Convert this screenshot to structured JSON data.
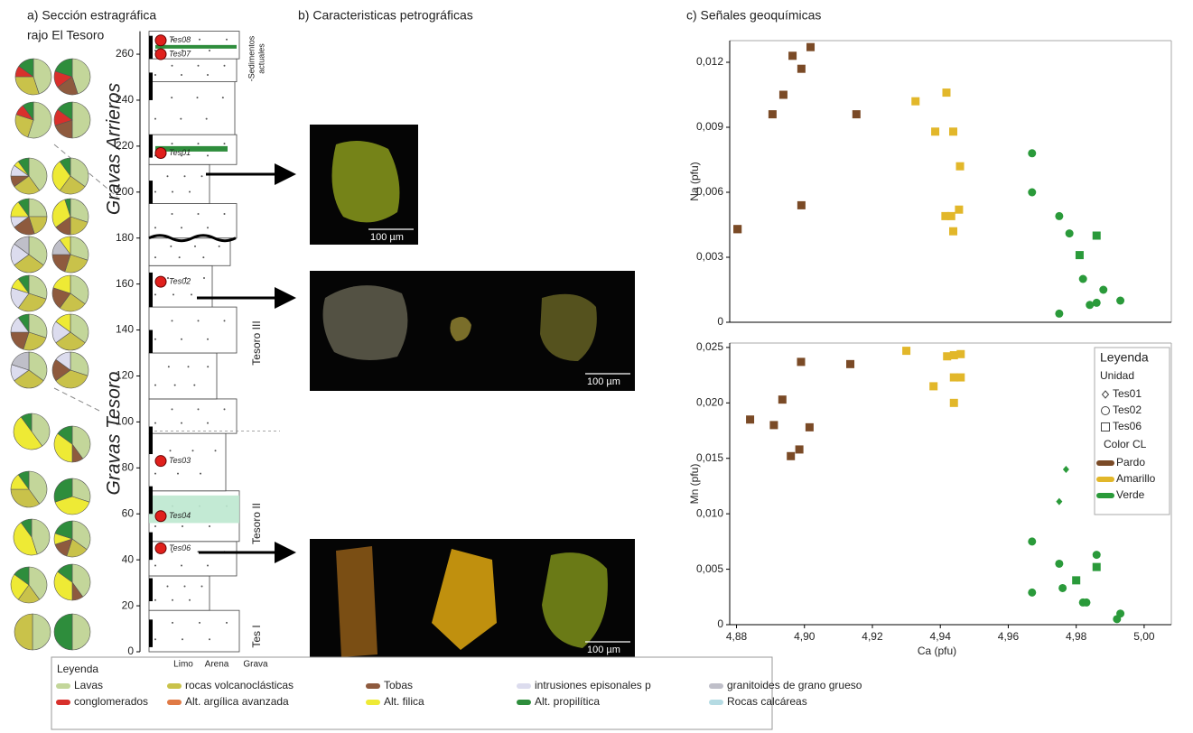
{
  "panel_a": {
    "title_line1": "a) Sección estragráfica",
    "title_line2": "rajo El Tesoro",
    "depth_ticks": [
      0,
      20,
      40,
      60,
      80,
      100,
      120,
      140,
      160,
      180,
      200,
      220,
      240,
      260
    ],
    "units": [
      "Gravas Arrieros",
      "Gravas Tesoro"
    ],
    "subunits": [
      "Tesoro III",
      "Tesoro II",
      "Tes I"
    ],
    "recent_line1": "-Sedimentos",
    "recent_line2": "actuales",
    "grain_sizes": [
      "Limo",
      "Arena",
      "Grava"
    ],
    "samples": [
      {
        "name": "Tes08",
        "height": 266
      },
      {
        "name": "Tes07",
        "height": 260
      },
      {
        "name": "Tes01",
        "height": 217
      },
      {
        "name": "Tes02",
        "height": 161
      },
      {
        "name": "Tes03",
        "height": 83
      },
      {
        "name": "Tes04",
        "height": 59
      },
      {
        "name": "Tes06",
        "height": 45
      }
    ],
    "pies": [
      {
        "values": [
          45,
          30,
          0,
          0,
          0,
          10,
          0,
          0,
          15,
          0
        ]
      },
      {
        "values": [
          45,
          0,
          20,
          0,
          0,
          15,
          0,
          0,
          20,
          0
        ]
      },
      {
        "values": [
          55,
          25,
          0,
          0,
          0,
          10,
          0,
          0,
          10,
          0
        ]
      },
      {
        "values": [
          50,
          0,
          20,
          0,
          0,
          15,
          0,
          0,
          15,
          0
        ]
      },
      {
        "values": [
          40,
          25,
          10,
          10,
          0,
          0,
          0,
          5,
          10,
          0
        ]
      },
      {
        "values": [
          35,
          25,
          0,
          0,
          0,
          0,
          0,
          30,
          10,
          0
        ]
      },
      {
        "values": [
          25,
          20,
          20,
          10,
          0,
          0,
          0,
          15,
          10,
          0
        ]
      },
      {
        "values": [
          30,
          20,
          15,
          0,
          0,
          0,
          0,
          30,
          5,
          0
        ]
      },
      {
        "values": [
          35,
          30,
          0,
          20,
          15,
          0,
          0,
          0,
          0,
          0
        ]
      },
      {
        "values": [
          30,
          25,
          20,
          0,
          15,
          0,
          0,
          10,
          0,
          0
        ]
      },
      {
        "values": [
          30,
          30,
          0,
          20,
          0,
          0,
          0,
          10,
          10,
          0
        ]
      },
      {
        "values": [
          35,
          25,
          20,
          0,
          0,
          0,
          0,
          20,
          0,
          0
        ]
      },
      {
        "values": [
          30,
          25,
          20,
          15,
          0,
          0,
          0,
          0,
          10,
          0
        ]
      },
      {
        "values": [
          35,
          30,
          0,
          20,
          0,
          0,
          0,
          15,
          0,
          0
        ]
      },
      {
        "values": [
          35,
          30,
          0,
          15,
          20,
          0,
          0,
          0,
          0,
          0
        ]
      },
      {
        "values": [
          30,
          35,
          20,
          15,
          0,
          0,
          0,
          0,
          0,
          0
        ]
      },
      {
        "values": [
          40,
          0,
          0,
          0,
          0,
          0,
          0,
          50,
          10,
          0
        ]
      },
      {
        "values": [
          40,
          0,
          10,
          0,
          0,
          0,
          0,
          35,
          15,
          0
        ]
      },
      {
        "values": [
          40,
          35,
          0,
          0,
          0,
          0,
          0,
          15,
          10,
          0
        ]
      },
      {
        "values": [
          30,
          0,
          0,
          0,
          0,
          0,
          0,
          40,
          30,
          0
        ]
      },
      {
        "values": [
          45,
          0,
          0,
          0,
          0,
          0,
          0,
          45,
          10,
          0
        ]
      },
      {
        "values": [
          35,
          20,
          15,
          0,
          0,
          0,
          0,
          10,
          20,
          0
        ]
      },
      {
        "values": [
          40,
          20,
          0,
          0,
          0,
          0,
          0,
          25,
          15,
          0
        ]
      },
      {
        "values": [
          40,
          0,
          10,
          0,
          0,
          0,
          0,
          35,
          15,
          0
        ]
      },
      {
        "values": [
          50,
          50,
          0,
          0,
          0,
          0,
          0,
          0,
          0,
          0
        ]
      },
      {
        "values": [
          50,
          0,
          0,
          0,
          0,
          0,
          0,
          0,
          50,
          0
        ]
      }
    ]
  },
  "panel_b": {
    "title": "b) Caracteristicas petrográficas",
    "images": [
      {
        "scale": "100 µm"
      },
      {
        "scale": "100 µm"
      },
      {
        "scale": "100 µm"
      }
    ]
  },
  "panel_c": {
    "title": "c) Señales geoquímicas"
  },
  "chart_data": [
    {
      "type": "scatter",
      "ylabel": "Na (pfu)",
      "xlim": [
        4.878,
        5.008
      ],
      "ylim": [
        0,
        0.013
      ],
      "yticks": [
        0,
        {
          "value": 0.003,
          "label": "0,003"
        },
        {
          "value": 0.006,
          "label": "0,006"
        },
        {
          "value": 0.009,
          "label": "0,009"
        },
        {
          "value": 0.012,
          "label": "0,012"
        }
      ],
      "series": [
        {
          "color": "#7a4a26",
          "markers": [
            "square",
            "square",
            "square",
            "square",
            "square",
            "square",
            "square",
            "square",
            "square"
          ],
          "x": [
            4.8803,
            4.8906,
            4.8938,
            4.8965,
            4.8991,
            4.9018,
            4.8991,
            4.9153,
            4.8803
          ],
          "values": [
            0.0043,
            0.0096,
            0.0105,
            0.0123,
            0.0117,
            0.0127,
            0.0054,
            0.0096,
            0.0043
          ]
        },
        {
          "color": "#e2b72a",
          "markers": [
            "square",
            "square",
            "square",
            "square",
            "square",
            "square",
            "square",
            "square",
            "square"
          ],
          "x": [
            4.9327,
            4.9418,
            4.9385,
            4.9438,
            4.9458,
            4.9415,
            4.9432,
            4.9455,
            4.9438
          ],
          "values": [
            0.0102,
            0.0106,
            0.0088,
            0.0088,
            0.0072,
            0.0049,
            0.0049,
            0.0052,
            0.0042
          ]
        },
        {
          "color": "#2a9a3a",
          "markers": [
            "circle",
            "circle",
            "circle",
            "circle",
            "square",
            "square",
            "circle",
            "circle",
            "circle",
            "circle",
            "circle",
            "circle"
          ],
          "x": [
            4.967,
            4.967,
            4.975,
            4.978,
            4.981,
            4.986,
            4.982,
            4.988,
            4.984,
            4.986,
            4.993,
            4.975
          ],
          "values": [
            0.0078,
            0.006,
            0.0049,
            0.0041,
            0.0031,
            0.004,
            0.002,
            0.0015,
            0.0008,
            0.0009,
            0.001,
            0.0004
          ]
        }
      ]
    },
    {
      "type": "scatter",
      "xlabel": "Ca (pfu)",
      "ylabel": "Mn (pfu)",
      "xlim": [
        4.878,
        5.008
      ],
      "ylim": [
        0,
        0.0254
      ],
      "xticks": [
        {
          "value": 4.88,
          "label": "4,88"
        },
        {
          "value": 4.9,
          "label": "4,90"
        },
        {
          "value": 4.92,
          "label": "4,92"
        },
        {
          "value": 4.94,
          "label": "4,94"
        },
        {
          "value": 4.96,
          "label": "4,96"
        },
        {
          "value": 4.98,
          "label": "4,98"
        },
        {
          "value": 5.0,
          "label": "5,00"
        }
      ],
      "yticks": [
        0,
        {
          "value": 0.005,
          "label": "0,005"
        },
        {
          "value": 0.01,
          "label": "0,010"
        },
        {
          "value": 0.015,
          "label": "0,015"
        },
        {
          "value": 0.02,
          "label": "0,020"
        },
        {
          "value": 0.025,
          "label": "0,025"
        }
      ],
      "legend_title": "Leyenda",
      "unit_title": "Unidad",
      "units": [
        {
          "name": "Tes01",
          "marker": "diamond"
        },
        {
          "name": "Tes02",
          "marker": "circle"
        },
        {
          "name": "Tes06",
          "marker": "square"
        }
      ],
      "color_title": "Color CL",
      "series": [
        {
          "name": "Pardo",
          "color": "#7a4a26",
          "markers": [
            "square",
            "square",
            "square",
            "square",
            "square",
            "square",
            "square",
            "square"
          ],
          "x": [
            4.884,
            4.891,
            4.8935,
            4.896,
            4.8985,
            4.9015,
            4.899,
            4.9135
          ],
          "values": [
            0.0185,
            0.018,
            0.0203,
            0.0152,
            0.0158,
            0.0178,
            0.0237,
            0.0235
          ]
        },
        {
          "name": "Amarillo",
          "color": "#e2b72a",
          "markers": [
            "square",
            "square",
            "square",
            "square",
            "square",
            "square",
            "square",
            "square"
          ],
          "x": [
            4.93,
            4.938,
            4.942,
            4.944,
            4.946,
            4.944,
            4.946,
            4.944
          ],
          "values": [
            0.0247,
            0.0215,
            0.0242,
            0.0243,
            0.0244,
            0.0223,
            0.0223,
            0.02
          ]
        },
        {
          "name": "Verde",
          "color": "#2a9a3a",
          "markers": [
            "diamond",
            "diamond",
            "circle",
            "circle",
            "circle",
            "circle",
            "square",
            "circle",
            "square",
            "circle",
            "circle",
            "circle",
            "circle"
          ],
          "x": [
            4.977,
            4.975,
            4.967,
            4.967,
            4.975,
            4.976,
            4.98,
            4.986,
            4.986,
            4.982,
            4.983,
            4.993,
            4.992
          ],
          "values": [
            0.014,
            0.0111,
            0.0075,
            0.0029,
            0.0055,
            0.0033,
            0.004,
            0.0063,
            0.0052,
            0.002,
            0.002,
            0.001,
            0.0005
          ]
        }
      ]
    }
  ],
  "legend": {
    "title": "Leyenda",
    "items": [
      {
        "name": "Lavas",
        "color": "#c3d69a"
      },
      {
        "name": "rocas volcanoclásticas",
        "color": "#c9c24a"
      },
      {
        "name": "Tobas",
        "color": "#8e5a3e"
      },
      {
        "name": "intrusiones episonales p",
        "color": "#dcdcee"
      },
      {
        "name": "granitoides de grano grueso",
        "color": "#bfbfc9"
      },
      {
        "name": "conglomerados",
        "color": "#d8302c"
      },
      {
        "name": "Alt. argílica avanzada",
        "color": "#e07a45"
      },
      {
        "name": "Alt. filica",
        "color": "#eeea35"
      },
      {
        "name": "Alt. propilítica",
        "color": "#2e8d3c"
      },
      {
        "name": "Rocas calcáreas",
        "color": "#b5dbe3"
      }
    ]
  }
}
